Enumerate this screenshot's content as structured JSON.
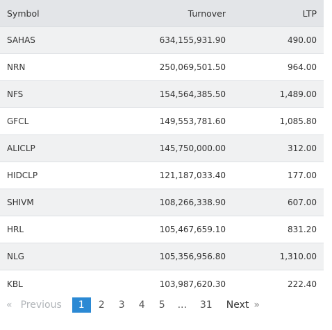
{
  "table": {
    "headers": {
      "symbol": "Symbol",
      "turnover": "Turnover",
      "ltp": "LTP"
    },
    "rows": [
      {
        "symbol": "SAHAS",
        "turnover": "634,155,931.90",
        "ltp": "490.00"
      },
      {
        "symbol": "NRN",
        "turnover": "250,069,501.50",
        "ltp": "964.00"
      },
      {
        "symbol": "NFS",
        "turnover": "154,564,385.50",
        "ltp": "1,489.00"
      },
      {
        "symbol": "GFCL",
        "turnover": "149,553,781.60",
        "ltp": "1,085.80"
      },
      {
        "symbol": "ALICLP",
        "turnover": "145,750,000.00",
        "ltp": "312.00"
      },
      {
        "symbol": "HIDCLP",
        "turnover": "121,187,033.40",
        "ltp": "177.00"
      },
      {
        "symbol": "SHIVM",
        "turnover": "108,266,338.90",
        "ltp": "607.00"
      },
      {
        "symbol": "HRL",
        "turnover": "105,467,659.10",
        "ltp": "831.20"
      },
      {
        "symbol": "NLG",
        "turnover": "105,356,956.80",
        "ltp": "1,310.00"
      },
      {
        "symbol": "KBL",
        "turnover": "103,987,620.30",
        "ltp": "222.40"
      }
    ]
  },
  "pagination": {
    "prev_arrow": "«",
    "prev_label": "Previous",
    "pages": [
      "1",
      "2",
      "3",
      "4",
      "5"
    ],
    "active_page": "1",
    "ellipsis": "...",
    "last_page": "31",
    "next_label": "Next",
    "next_arrow": "»"
  },
  "colors": {
    "active_page_bg": "#2b89d4",
    "header_bg": "#e3e5e8",
    "stripe_bg": "#f0f1f2"
  }
}
